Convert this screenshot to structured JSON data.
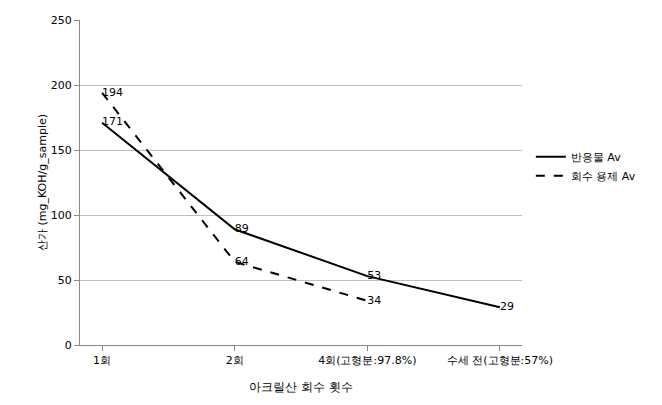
{
  "chart_data": {
    "type": "line",
    "x_label": "아크릴산 회수 횟수",
    "y_label": "산가 (mg_KOH/g_sample)",
    "categories": [
      "1회",
      "2회",
      "4회(고형분:97.8%)",
      "수세 전(고형분:57%)"
    ],
    "series": [
      {
        "name": "반응물 Av",
        "color": "#000000",
        "line_style": "solid",
        "values": [
          171,
          89,
          53,
          29
        ]
      },
      {
        "name": "회수 용제 Av",
        "color": "#000000",
        "line_style": "dashed",
        "values": [
          194,
          64,
          34,
          null
        ]
      }
    ],
    "ylim": [
      0,
      250
    ],
    "yticks": [
      0,
      50,
      100,
      150,
      200,
      250
    ],
    "grid": true,
    "legend": "right",
    "data_labels": true
  }
}
